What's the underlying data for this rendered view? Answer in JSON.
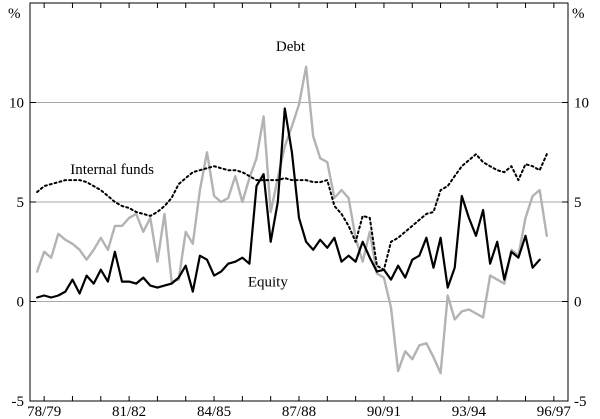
{
  "chart_data": {
    "type": "line",
    "title": "",
    "xlabel": "",
    "ylabel": "",
    "y_unit_left": "%",
    "y_unit_right": "%",
    "ylim": [
      -5,
      15
    ],
    "yticks": [
      -5,
      0,
      5,
      10
    ],
    "horizontal_gridlines_at": [
      0,
      5,
      10
    ],
    "grid": "horizontal",
    "legend": "none (series labelled directly on plot)",
    "xlim": [
      1978.5,
      1997.5
    ],
    "x_tick_labels": [
      "78/79",
      "81/82",
      "84/85",
      "87/88",
      "90/91",
      "93/94",
      "96/97"
    ],
    "x_tick_positions": [
      1979,
      1982,
      1985,
      1988,
      1991,
      1994,
      1997
    ],
    "annotations": [
      {
        "text": "Debt",
        "series": "Debt",
        "at_x": 1987.7,
        "at_y": 12.6
      },
      {
        "text": "Internal funds",
        "series": "Internal funds",
        "at_x": 1981.4,
        "at_y": 6.4
      },
      {
        "text": "Equity",
        "series": "Equity",
        "at_x": 1986.9,
        "at_y": 0.75
      }
    ],
    "series": [
      {
        "name": "Debt",
        "color": "#b3b3b3",
        "style": "solid",
        "points": [
          [
            1978.75,
            1.5
          ],
          [
            1979.0,
            2.5
          ],
          [
            1979.25,
            2.2
          ],
          [
            1979.5,
            3.4
          ],
          [
            1979.75,
            3.1
          ],
          [
            1980.0,
            2.9
          ],
          [
            1980.25,
            2.6
          ],
          [
            1980.5,
            2.1
          ],
          [
            1980.75,
            2.6
          ],
          [
            1981.0,
            3.2
          ],
          [
            1981.25,
            2.6
          ],
          [
            1981.5,
            3.8
          ],
          [
            1981.75,
            3.8
          ],
          [
            1982.0,
            4.2
          ],
          [
            1982.25,
            4.4
          ],
          [
            1982.5,
            3.5
          ],
          [
            1982.75,
            4.2
          ],
          [
            1983.0,
            2.0
          ],
          [
            1983.25,
            4.4
          ],
          [
            1983.5,
            1.0
          ],
          [
            1983.75,
            1.1
          ],
          [
            1984.0,
            3.5
          ],
          [
            1984.25,
            2.9
          ],
          [
            1984.5,
            5.6
          ],
          [
            1984.75,
            7.5
          ],
          [
            1985.0,
            5.3
          ],
          [
            1985.25,
            5.0
          ],
          [
            1985.5,
            5.2
          ],
          [
            1985.75,
            6.3
          ],
          [
            1986.0,
            5.0
          ],
          [
            1986.25,
            6.2
          ],
          [
            1986.5,
            7.2
          ],
          [
            1986.75,
            9.3
          ],
          [
            1987.0,
            4.5
          ],
          [
            1987.25,
            6.2
          ],
          [
            1987.5,
            7.8
          ],
          [
            1987.75,
            8.8
          ],
          [
            1988.0,
            9.9
          ],
          [
            1988.25,
            11.8
          ],
          [
            1988.5,
            8.3
          ],
          [
            1988.75,
            7.2
          ],
          [
            1989.0,
            7.0
          ],
          [
            1989.25,
            5.2
          ],
          [
            1989.5,
            5.6
          ],
          [
            1989.75,
            5.2
          ],
          [
            1990.0,
            3.2
          ],
          [
            1990.25,
            2.0
          ],
          [
            1990.5,
            3.5
          ],
          [
            1990.75,
            1.4
          ],
          [
            1991.0,
            1.2
          ],
          [
            1991.25,
            -0.3
          ],
          [
            1991.5,
            -3.5
          ],
          [
            1991.75,
            -2.5
          ],
          [
            1992.0,
            -2.9
          ],
          [
            1992.25,
            -2.2
          ],
          [
            1992.5,
            -2.1
          ],
          [
            1992.75,
            -2.8
          ],
          [
            1993.0,
            -3.6
          ],
          [
            1993.25,
            0.3
          ],
          [
            1993.5,
            -0.9
          ],
          [
            1993.75,
            -0.5
          ],
          [
            1994.0,
            -0.4
          ],
          [
            1994.25,
            -0.6
          ],
          [
            1994.5,
            -0.8
          ],
          [
            1994.75,
            1.3
          ],
          [
            1995.0,
            1.1
          ],
          [
            1995.25,
            0.9
          ],
          [
            1995.5,
            2.6
          ],
          [
            1995.75,
            2.3
          ],
          [
            1996.0,
            4.2
          ],
          [
            1996.25,
            5.3
          ],
          [
            1996.5,
            5.6
          ],
          [
            1996.75,
            3.3
          ]
        ]
      },
      {
        "name": "Internal funds",
        "color": "#000000",
        "style": "dotted",
        "points": [
          [
            1978.75,
            5.5
          ],
          [
            1979.0,
            5.8
          ],
          [
            1979.25,
            5.9
          ],
          [
            1979.5,
            6.0
          ],
          [
            1979.75,
            6.1
          ],
          [
            1980.0,
            6.1
          ],
          [
            1980.25,
            6.1
          ],
          [
            1980.5,
            6.0
          ],
          [
            1980.75,
            5.8
          ],
          [
            1981.0,
            5.6
          ],
          [
            1981.25,
            5.3
          ],
          [
            1981.5,
            5.0
          ],
          [
            1981.75,
            4.8
          ],
          [
            1982.0,
            4.7
          ],
          [
            1982.25,
            4.5
          ],
          [
            1982.5,
            4.4
          ],
          [
            1982.75,
            4.3
          ],
          [
            1983.0,
            4.5
          ],
          [
            1983.25,
            4.8
          ],
          [
            1983.5,
            5.2
          ],
          [
            1983.75,
            5.9
          ],
          [
            1984.0,
            6.2
          ],
          [
            1984.25,
            6.5
          ],
          [
            1984.5,
            6.6
          ],
          [
            1984.75,
            6.7
          ],
          [
            1985.0,
            6.8
          ],
          [
            1985.25,
            6.7
          ],
          [
            1985.5,
            6.6
          ],
          [
            1985.75,
            6.6
          ],
          [
            1986.0,
            6.5
          ],
          [
            1986.25,
            6.3
          ],
          [
            1986.5,
            6.1
          ],
          [
            1986.75,
            6.1
          ],
          [
            1987.0,
            6.1
          ],
          [
            1987.25,
            6.1
          ],
          [
            1987.5,
            6.2
          ],
          [
            1987.75,
            6.1
          ],
          [
            1988.0,
            6.1
          ],
          [
            1988.25,
            6.1
          ],
          [
            1988.5,
            6.0
          ],
          [
            1988.75,
            6.0
          ],
          [
            1989.0,
            6.1
          ],
          [
            1989.25,
            4.8
          ],
          [
            1989.5,
            4.4
          ],
          [
            1989.75,
            3.8
          ],
          [
            1990.0,
            3.0
          ],
          [
            1990.25,
            4.3
          ],
          [
            1990.5,
            4.2
          ],
          [
            1990.75,
            1.8
          ],
          [
            1991.0,
            1.6
          ],
          [
            1991.25,
            3.0
          ],
          [
            1991.5,
            3.2
          ],
          [
            1991.75,
            3.5
          ],
          [
            1992.0,
            3.8
          ],
          [
            1992.25,
            4.1
          ],
          [
            1992.5,
            4.4
          ],
          [
            1992.75,
            4.5
          ],
          [
            1993.0,
            5.6
          ],
          [
            1993.25,
            5.8
          ],
          [
            1993.5,
            6.3
          ],
          [
            1993.75,
            6.8
          ],
          [
            1994.0,
            7.1
          ],
          [
            1994.25,
            7.4
          ],
          [
            1994.5,
            7.0
          ],
          [
            1994.75,
            6.8
          ],
          [
            1995.0,
            6.6
          ],
          [
            1995.25,
            6.5
          ],
          [
            1995.5,
            6.8
          ],
          [
            1995.75,
            6.1
          ],
          [
            1996.0,
            6.9
          ],
          [
            1996.25,
            6.8
          ],
          [
            1996.5,
            6.6
          ],
          [
            1996.75,
            7.4
          ]
        ]
      },
      {
        "name": "Equity",
        "color": "#000000",
        "style": "solid",
        "points": [
          [
            1978.75,
            0.2
          ],
          [
            1979.0,
            0.3
          ],
          [
            1979.25,
            0.2
          ],
          [
            1979.5,
            0.3
          ],
          [
            1979.75,
            0.5
          ],
          [
            1980.0,
            1.1
          ],
          [
            1980.25,
            0.4
          ],
          [
            1980.5,
            1.3
          ],
          [
            1980.75,
            0.9
          ],
          [
            1981.0,
            1.6
          ],
          [
            1981.25,
            1.0
          ],
          [
            1981.5,
            2.5
          ],
          [
            1981.75,
            1.0
          ],
          [
            1982.0,
            1.0
          ],
          [
            1982.25,
            0.9
          ],
          [
            1982.5,
            1.2
          ],
          [
            1982.75,
            0.8
          ],
          [
            1983.0,
            0.7
          ],
          [
            1983.25,
            0.8
          ],
          [
            1983.5,
            0.9
          ],
          [
            1983.75,
            1.2
          ],
          [
            1984.0,
            1.8
          ],
          [
            1984.25,
            0.5
          ],
          [
            1984.5,
            2.3
          ],
          [
            1984.75,
            2.1
          ],
          [
            1985.0,
            1.3
          ],
          [
            1985.25,
            1.5
          ],
          [
            1985.5,
            1.9
          ],
          [
            1985.75,
            2.0
          ],
          [
            1986.0,
            2.2
          ],
          [
            1986.25,
            1.9
          ],
          [
            1986.5,
            5.8
          ],
          [
            1986.75,
            6.4
          ],
          [
            1987.0,
            3.0
          ],
          [
            1987.25,
            5.0
          ],
          [
            1987.5,
            9.7
          ],
          [
            1987.75,
            7.5
          ],
          [
            1988.0,
            4.2
          ],
          [
            1988.25,
            3.0
          ],
          [
            1988.5,
            2.6
          ],
          [
            1988.75,
            3.1
          ],
          [
            1989.0,
            2.7
          ],
          [
            1989.25,
            3.2
          ],
          [
            1989.5,
            2.0
          ],
          [
            1989.75,
            2.3
          ],
          [
            1990.0,
            2.0
          ],
          [
            1990.25,
            3.0
          ],
          [
            1990.5,
            2.2
          ],
          [
            1990.75,
            1.5
          ],
          [
            1991.0,
            1.6
          ],
          [
            1991.25,
            1.1
          ],
          [
            1991.5,
            1.8
          ],
          [
            1991.75,
            1.2
          ],
          [
            1992.0,
            2.1
          ],
          [
            1992.25,
            2.3
          ],
          [
            1992.5,
            3.2
          ],
          [
            1992.75,
            1.7
          ],
          [
            1993.0,
            3.2
          ],
          [
            1993.25,
            0.7
          ],
          [
            1993.5,
            1.7
          ],
          [
            1993.75,
            5.3
          ],
          [
            1994.0,
            4.2
          ],
          [
            1994.25,
            3.3
          ],
          [
            1994.5,
            4.6
          ],
          [
            1994.75,
            1.9
          ],
          [
            1995.0,
            3.0
          ],
          [
            1995.25,
            1.1
          ],
          [
            1995.5,
            2.5
          ],
          [
            1995.75,
            2.2
          ],
          [
            1996.0,
            3.3
          ],
          [
            1996.25,
            1.7
          ],
          [
            1996.5,
            2.1
          ]
        ]
      }
    ]
  }
}
